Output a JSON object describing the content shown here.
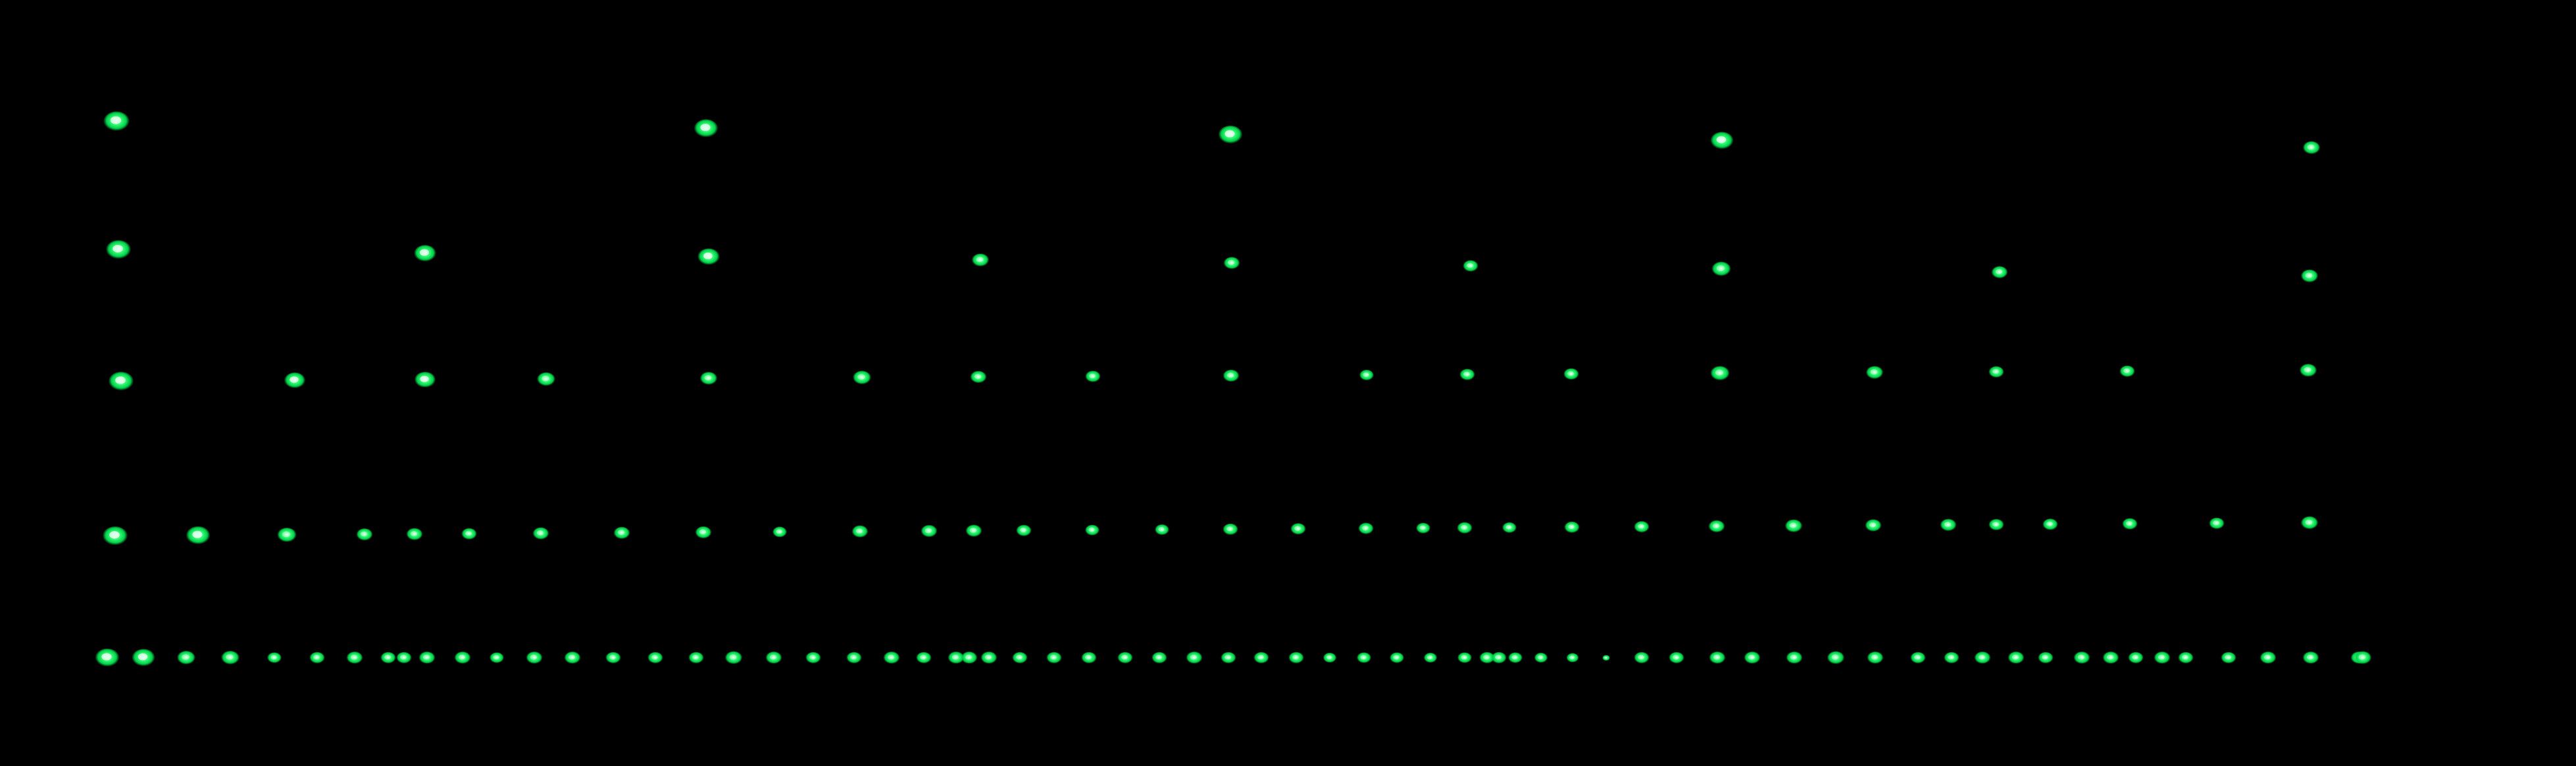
{
  "colors": {
    "background": "#000000",
    "glow_core": "#e8fff0",
    "glow_mid": "#3dff7a",
    "glow_edge": "#00d24a"
  },
  "rows": [
    {
      "x": [
        163,
        218,
        283,
        350,
        417,
        482,
        539,
        590,
        614,
        649,
        703,
        755,
        812,
        870,
        932,
        996,
        1058,
        1115,
        1176,
        1236,
        1298,
        1355,
        1404,
        1453,
        1473,
        1503,
        1550,
        1602,
        1655,
        1710,
        1762,
        1815,
        1867,
        1917,
        1970,
        2021,
        2073,
        2123,
        2174,
        2226,
        2260,
        2278,
        2303,
        2342,
        2390,
        2441,
        2495,
        2548,
        2610,
        2663,
        2727,
        2790,
        2850,
        2915,
        2966,
        3013,
        3064,
        3109,
        3164,
        3208,
        3246,
        3286,
        3322,
        3387,
        3447,
        3512,
        3585,
        3591
      ],
      "size": [
        1.25,
        1.2,
        0.95,
        0.95,
        0.75,
        0.8,
        0.85,
        0.8,
        0.8,
        0.85,
        0.85,
        0.75,
        0.85,
        0.85,
        0.8,
        0.8,
        0.8,
        0.9,
        0.85,
        0.8,
        0.8,
        0.85,
        0.8,
        0.85,
        0.85,
        0.85,
        0.8,
        0.8,
        0.8,
        0.8,
        0.8,
        0.85,
        0.8,
        0.8,
        0.8,
        0.7,
        0.75,
        0.75,
        0.7,
        0.75,
        0.8,
        0.8,
        0.75,
        0.7,
        0.65,
        0.4,
        0.8,
        0.8,
        0.85,
        0.85,
        0.85,
        0.9,
        0.85,
        0.8,
        0.8,
        0.85,
        0.85,
        0.8,
        0.85,
        0.85,
        0.8,
        0.85,
        0.8,
        0.8,
        0.85,
        0.85,
        0.85,
        0.9
      ]
    },
    {
      "x": [
        175,
        301,
        436,
        554,
        630,
        713,
        822,
        945,
        1069,
        1185,
        1307,
        1412,
        1480,
        1556,
        1660,
        1766,
        1870,
        1973,
        2076,
        2163,
        2226,
        2294,
        2389,
        2495,
        2609,
        2726,
        2847,
        2961,
        3034,
        3116,
        3237,
        3369,
        3510
      ],
      "size": [
        1.3,
        1.25,
        1.0,
        0.85,
        0.85,
        0.8,
        0.85,
        0.85,
        0.85,
        0.75,
        0.85,
        0.85,
        0.85,
        0.8,
        0.75,
        0.75,
        0.8,
        0.8,
        0.8,
        0.75,
        0.8,
        0.75,
        0.8,
        0.8,
        0.85,
        0.9,
        0.85,
        0.85,
        0.8,
        0.8,
        0.8,
        0.8,
        0.9
      ]
    },
    {
      "x": [
        184,
        448,
        646,
        830,
        1077,
        1310,
        1487,
        1661,
        1871,
        2077,
        2230,
        2388,
        2614,
        2849,
        3034,
        3233,
        3508
      ],
      "size": [
        1.3,
        1.1,
        1.1,
        0.95,
        0.9,
        0.95,
        0.85,
        0.8,
        0.85,
        0.75,
        0.8,
        0.8,
        1.0,
        0.9,
        0.8,
        0.8,
        0.9
      ]
    },
    {
      "x": [
        180,
        646,
        1077,
        1490,
        1872,
        2235,
        2616,
        3039,
        3510
      ],
      "size": [
        1.3,
        1.15,
        1.15,
        0.9,
        0.85,
        0.8,
        1.0,
        0.85,
        0.9
      ]
    },
    {
      "x": [
        177,
        1073,
        1870,
        2617,
        3513
      ],
      "size": [
        1.35,
        1.25,
        1.25,
        1.2,
        0.9
      ]
    }
  ]
}
